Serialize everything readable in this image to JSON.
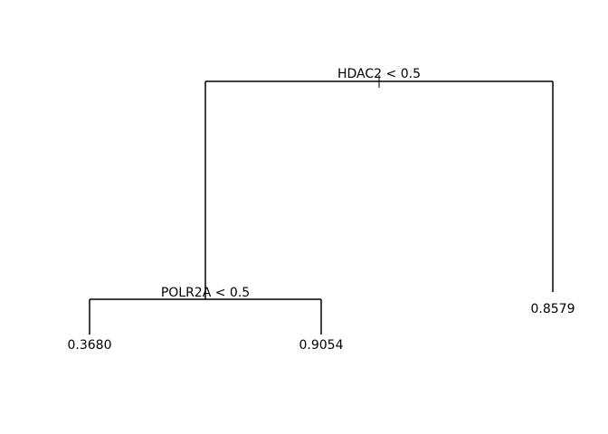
{
  "tree": {
    "root": {
      "split_label": "HDAC2 < 0.5",
      "left": {
        "split_label": "POLR2A < 0.5",
        "left_leaf": "0.3680",
        "right_leaf": "0.9054"
      },
      "right_leaf": "0.8579"
    }
  },
  "colors": {
    "line": "#000000",
    "background": "#ffffff"
  }
}
